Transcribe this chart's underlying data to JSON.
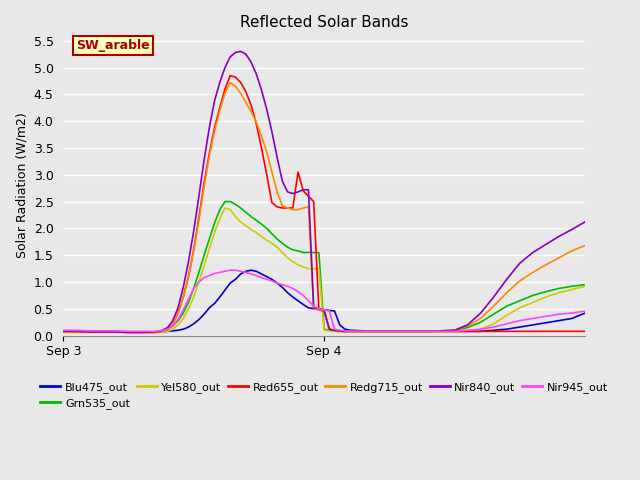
{
  "title": "Reflected Solar Bands",
  "ylabel": "Solar Radiation (W/m2)",
  "xlim_days": [
    0.0,
    2.0
  ],
  "ylim": [
    0.0,
    5.6
  ],
  "yticks": [
    0.0,
    0.5,
    1.0,
    1.5,
    2.0,
    2.5,
    3.0,
    3.5,
    4.0,
    4.5,
    5.0,
    5.5
  ],
  "xtick_positions": [
    0.0,
    1.0
  ],
  "xtick_labels": [
    "Sep 3",
    "Sep 4"
  ],
  "fig_bg": "#e8e8e8",
  "plot_bg": "#e8e8e8",
  "grid_color": "#ffffff",
  "annotation_text": "SW_arable",
  "annotation_bg": "#ffffc0",
  "annotation_border": "#aa0000",
  "annotation_text_color": "#aa0000",
  "series": {
    "Blu475_out": {
      "color": "#0000cc",
      "x": [
        0.0,
        0.05,
        0.1,
        0.15,
        0.2,
        0.25,
        0.3,
        0.35,
        0.37,
        0.4,
        0.42,
        0.44,
        0.46,
        0.48,
        0.5,
        0.52,
        0.54,
        0.56,
        0.58,
        0.6,
        0.62,
        0.64,
        0.66,
        0.68,
        0.7,
        0.72,
        0.74,
        0.76,
        0.78,
        0.8,
        0.82,
        0.84,
        0.86,
        0.88,
        0.9,
        0.92,
        0.94,
        0.96,
        0.98,
        1.0,
        1.02,
        1.04,
        1.06,
        1.08,
        1.1,
        1.2,
        1.3,
        1.4,
        1.5,
        1.55,
        1.6,
        1.65,
        1.7,
        1.75,
        1.8,
        1.85,
        1.9,
        1.95,
        2.0
      ],
      "y": [
        0.07,
        0.07,
        0.07,
        0.07,
        0.07,
        0.07,
        0.07,
        0.07,
        0.07,
        0.08,
        0.09,
        0.1,
        0.12,
        0.16,
        0.22,
        0.3,
        0.4,
        0.52,
        0.6,
        0.72,
        0.85,
        0.98,
        1.05,
        1.15,
        1.2,
        1.22,
        1.2,
        1.15,
        1.1,
        1.05,
        0.98,
        0.9,
        0.8,
        0.72,
        0.65,
        0.58,
        0.52,
        0.5,
        0.5,
        0.48,
        0.47,
        0.46,
        0.2,
        0.12,
        0.1,
        0.08,
        0.08,
        0.08,
        0.08,
        0.08,
        0.08,
        0.1,
        0.12,
        0.16,
        0.2,
        0.24,
        0.28,
        0.32,
        0.42
      ]
    },
    "Grn535_out": {
      "color": "#00bb00",
      "x": [
        0.0,
        0.05,
        0.1,
        0.15,
        0.2,
        0.25,
        0.3,
        0.35,
        0.37,
        0.4,
        0.42,
        0.44,
        0.46,
        0.48,
        0.5,
        0.52,
        0.54,
        0.56,
        0.58,
        0.6,
        0.62,
        0.64,
        0.66,
        0.68,
        0.7,
        0.72,
        0.74,
        0.76,
        0.78,
        0.8,
        0.82,
        0.84,
        0.86,
        0.88,
        0.9,
        0.92,
        0.94,
        0.96,
        0.98,
        1.0,
        1.02,
        1.04,
        1.06,
        1.08,
        1.1,
        1.2,
        1.3,
        1.4,
        1.5,
        1.55,
        1.6,
        1.65,
        1.7,
        1.75,
        1.8,
        1.85,
        1.9,
        1.95,
        2.0
      ],
      "y": [
        0.08,
        0.08,
        0.08,
        0.07,
        0.07,
        0.07,
        0.07,
        0.07,
        0.08,
        0.12,
        0.18,
        0.28,
        0.42,
        0.62,
        0.88,
        1.18,
        1.5,
        1.8,
        2.1,
        2.35,
        2.5,
        2.5,
        2.45,
        2.38,
        2.3,
        2.22,
        2.15,
        2.08,
        2.0,
        1.9,
        1.8,
        1.72,
        1.65,
        1.6,
        1.58,
        1.55,
        1.55,
        1.55,
        1.55,
        0.12,
        0.1,
        0.09,
        0.08,
        0.08,
        0.08,
        0.08,
        0.08,
        0.08,
        0.1,
        0.15,
        0.25,
        0.4,
        0.55,
        0.65,
        0.75,
        0.82,
        0.88,
        0.92,
        0.95
      ]
    },
    "Yel580_out": {
      "color": "#cccc00",
      "x": [
        0.0,
        0.05,
        0.1,
        0.15,
        0.2,
        0.25,
        0.3,
        0.35,
        0.37,
        0.4,
        0.42,
        0.44,
        0.46,
        0.48,
        0.5,
        0.52,
        0.54,
        0.56,
        0.58,
        0.6,
        0.62,
        0.64,
        0.66,
        0.68,
        0.7,
        0.72,
        0.74,
        0.76,
        0.78,
        0.8,
        0.82,
        0.84,
        0.86,
        0.88,
        0.9,
        0.92,
        0.94,
        0.96,
        0.98,
        1.0,
        1.02,
        1.04,
        1.06,
        1.08,
        1.1,
        1.2,
        1.3,
        1.4,
        1.5,
        1.55,
        1.6,
        1.65,
        1.7,
        1.75,
        1.8,
        1.85,
        1.9,
        1.95,
        2.0
      ],
      "y": [
        0.06,
        0.06,
        0.06,
        0.06,
        0.06,
        0.06,
        0.06,
        0.06,
        0.06,
        0.08,
        0.12,
        0.2,
        0.32,
        0.5,
        0.72,
        1.0,
        1.3,
        1.62,
        1.92,
        2.18,
        2.38,
        2.35,
        2.22,
        2.12,
        2.05,
        1.98,
        1.92,
        1.85,
        1.78,
        1.72,
        1.65,
        1.55,
        1.45,
        1.38,
        1.32,
        1.28,
        1.25,
        1.25,
        1.25,
        0.1,
        0.09,
        0.08,
        0.07,
        0.07,
        0.07,
        0.07,
        0.07,
        0.07,
        0.07,
        0.08,
        0.12,
        0.22,
        0.38,
        0.52,
        0.62,
        0.72,
        0.8,
        0.86,
        0.92
      ]
    },
    "Red655_out": {
      "color": "#ff0000",
      "x": [
        0.0,
        0.05,
        0.1,
        0.15,
        0.2,
        0.25,
        0.3,
        0.35,
        0.37,
        0.4,
        0.42,
        0.44,
        0.46,
        0.48,
        0.5,
        0.52,
        0.54,
        0.56,
        0.58,
        0.6,
        0.62,
        0.64,
        0.66,
        0.68,
        0.7,
        0.72,
        0.74,
        0.76,
        0.78,
        0.8,
        0.82,
        0.84,
        0.86,
        0.88,
        0.9,
        0.92,
        0.94,
        0.96,
        0.98,
        1.0,
        1.02,
        1.04,
        1.05,
        1.06,
        1.07,
        1.08,
        1.09,
        1.1,
        1.2,
        1.3,
        1.4,
        1.5,
        1.6,
        1.7,
        1.8,
        1.9,
        2.0
      ],
      "y": [
        0.08,
        0.08,
        0.07,
        0.07,
        0.07,
        0.06,
        0.06,
        0.06,
        0.07,
        0.12,
        0.22,
        0.42,
        0.72,
        1.1,
        1.6,
        2.2,
        2.85,
        3.4,
        3.88,
        4.25,
        4.6,
        4.85,
        4.82,
        4.72,
        4.55,
        4.3,
        3.95,
        3.5,
        3.0,
        2.48,
        2.4,
        2.38,
        2.38,
        2.38,
        3.05,
        2.7,
        2.6,
        2.5,
        0.48,
        0.45,
        0.12,
        0.1,
        0.09,
        0.09,
        0.08,
        0.08,
        0.08,
        0.08,
        0.08,
        0.08,
        0.08,
        0.08,
        0.08,
        0.08,
        0.08,
        0.08,
        0.08
      ]
    },
    "Redg715_out": {
      "color": "#ff8800",
      "x": [
        0.0,
        0.05,
        0.1,
        0.15,
        0.2,
        0.25,
        0.3,
        0.35,
        0.37,
        0.4,
        0.42,
        0.44,
        0.46,
        0.48,
        0.5,
        0.52,
        0.54,
        0.56,
        0.58,
        0.6,
        0.62,
        0.64,
        0.66,
        0.68,
        0.7,
        0.72,
        0.74,
        0.76,
        0.78,
        0.8,
        0.82,
        0.84,
        0.86,
        0.88,
        0.9,
        0.92,
        0.94,
        0.96,
        0.98,
        1.0,
        1.02,
        1.04,
        1.06,
        1.08,
        1.1,
        1.2,
        1.3,
        1.4,
        1.5,
        1.55,
        1.6,
        1.65,
        1.7,
        1.75,
        1.8,
        1.85,
        1.9,
        1.95,
        2.0
      ],
      "y": [
        0.08,
        0.08,
        0.07,
        0.07,
        0.07,
        0.06,
        0.06,
        0.06,
        0.07,
        0.12,
        0.22,
        0.42,
        0.72,
        1.1,
        1.58,
        2.15,
        2.78,
        3.35,
        3.82,
        4.2,
        4.52,
        4.72,
        4.65,
        4.52,
        4.35,
        4.18,
        3.98,
        3.72,
        3.42,
        3.05,
        2.68,
        2.42,
        2.38,
        2.35,
        2.35,
        2.38,
        2.4,
        0.5,
        0.48,
        0.46,
        0.12,
        0.1,
        0.09,
        0.08,
        0.08,
        0.08,
        0.08,
        0.08,
        0.1,
        0.18,
        0.32,
        0.55,
        0.8,
        1.02,
        1.18,
        1.32,
        1.45,
        1.58,
        1.68
      ]
    },
    "Nir840_out": {
      "color": "#8800bb",
      "x": [
        0.0,
        0.05,
        0.1,
        0.15,
        0.2,
        0.25,
        0.3,
        0.35,
        0.37,
        0.4,
        0.42,
        0.44,
        0.46,
        0.48,
        0.5,
        0.52,
        0.54,
        0.56,
        0.58,
        0.6,
        0.62,
        0.64,
        0.66,
        0.68,
        0.7,
        0.72,
        0.74,
        0.76,
        0.78,
        0.8,
        0.82,
        0.84,
        0.86,
        0.88,
        0.9,
        0.92,
        0.94,
        0.96,
        0.98,
        1.0,
        1.02,
        1.04,
        1.06,
        1.08,
        1.1,
        1.2,
        1.3,
        1.4,
        1.5,
        1.55,
        1.6,
        1.65,
        1.7,
        1.75,
        1.8,
        1.85,
        1.9,
        1.95,
        2.0
      ],
      "y": [
        0.08,
        0.08,
        0.07,
        0.07,
        0.07,
        0.06,
        0.06,
        0.07,
        0.08,
        0.15,
        0.28,
        0.52,
        0.9,
        1.38,
        1.95,
        2.6,
        3.28,
        3.88,
        4.38,
        4.72,
        5.0,
        5.2,
        5.28,
        5.3,
        5.25,
        5.1,
        4.88,
        4.58,
        4.22,
        3.8,
        3.32,
        2.88,
        2.68,
        2.65,
        2.68,
        2.72,
        2.72,
        0.52,
        0.5,
        0.48,
        0.12,
        0.1,
        0.09,
        0.08,
        0.08,
        0.08,
        0.08,
        0.08,
        0.1,
        0.2,
        0.42,
        0.72,
        1.05,
        1.35,
        1.55,
        1.7,
        1.85,
        1.98,
        2.12
      ]
    },
    "Nir945_out": {
      "color": "#ff44ff",
      "x": [
        0.0,
        0.05,
        0.1,
        0.15,
        0.2,
        0.25,
        0.3,
        0.35,
        0.37,
        0.4,
        0.42,
        0.44,
        0.46,
        0.48,
        0.5,
        0.52,
        0.54,
        0.56,
        0.58,
        0.6,
        0.62,
        0.64,
        0.66,
        0.68,
        0.7,
        0.72,
        0.74,
        0.76,
        0.78,
        0.8,
        0.82,
        0.84,
        0.86,
        0.88,
        0.9,
        0.92,
        0.94,
        0.96,
        0.98,
        1.0,
        1.02,
        1.04,
        1.06,
        1.08,
        1.1,
        1.2,
        1.3,
        1.4,
        1.5,
        1.55,
        1.6,
        1.65,
        1.7,
        1.75,
        1.8,
        1.85,
        1.9,
        1.95,
        2.0
      ],
      "y": [
        0.1,
        0.1,
        0.09,
        0.09,
        0.09,
        0.08,
        0.08,
        0.08,
        0.09,
        0.12,
        0.18,
        0.3,
        0.48,
        0.68,
        0.88,
        1.0,
        1.08,
        1.12,
        1.16,
        1.18,
        1.2,
        1.22,
        1.22,
        1.2,
        1.18,
        1.15,
        1.12,
        1.08,
        1.05,
        1.02,
        0.98,
        0.95,
        0.92,
        0.88,
        0.82,
        0.75,
        0.65,
        0.55,
        0.5,
        0.48,
        0.46,
        0.12,
        0.1,
        0.09,
        0.08,
        0.08,
        0.08,
        0.08,
        0.08,
        0.1,
        0.12,
        0.16,
        0.22,
        0.28,
        0.32,
        0.36,
        0.4,
        0.42,
        0.46
      ]
    }
  },
  "legend_order": [
    "Blu475_out",
    "Grn535_out",
    "Yel580_out",
    "Red655_out",
    "Redg715_out",
    "Nir840_out",
    "Nir945_out"
  ]
}
